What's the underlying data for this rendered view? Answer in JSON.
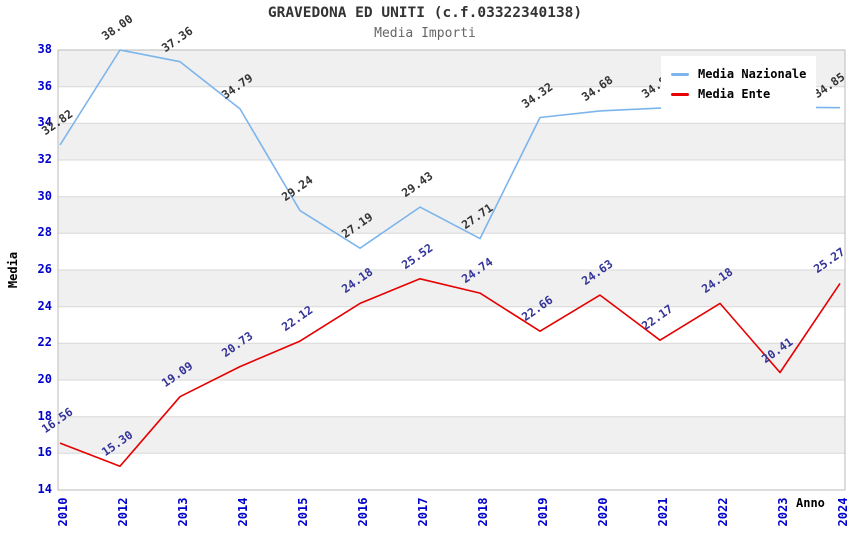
{
  "chart_data": {
    "type": "line",
    "title": "GRAVEDONA ED UNITI (c.f.03322340138)",
    "subtitle": "Media Importi",
    "xlabel": "Anno",
    "ylabel": "Media",
    "categories": [
      "2010",
      "2012",
      "2013",
      "2014",
      "2015",
      "2016",
      "2017",
      "2018",
      "2019",
      "2020",
      "2021",
      "2022",
      "2023",
      "2024"
    ],
    "ylim": [
      14,
      38
    ],
    "ytick_step": 2,
    "grid": "horizontal-bands",
    "legend_position": "top-right",
    "series": [
      {
        "name": "Media Nazionale",
        "color": "#7cb5ec",
        "label_color": "#333333",
        "values": [
          32.82,
          38.0,
          37.36,
          34.79,
          29.24,
          27.19,
          29.43,
          27.71,
          34.32,
          34.68,
          34.83,
          34.97,
          34.88,
          34.85
        ],
        "point_labels": [
          "32.82",
          "38.00",
          "37.36",
          "34.79",
          "29.24",
          "27.19",
          "29.43",
          "27.71",
          "34.32",
          "34.68",
          "34.83",
          "",
          "",
          "34.85"
        ]
      },
      {
        "name": "Media Ente",
        "color": "#e60000",
        "label_color": "#333399",
        "values": [
          16.56,
          15.3,
          19.09,
          20.73,
          22.12,
          24.18,
          25.52,
          24.74,
          22.66,
          24.63,
          22.17,
          24.18,
          20.41,
          25.27
        ],
        "point_labels": [
          "16.56",
          "15.30",
          "19.09",
          "20.73",
          "22.12",
          "24.18",
          "25.52",
          "24.74",
          "22.66",
          "24.63",
          "22.17",
          "24.18",
          "20.41",
          "25.27"
        ]
      }
    ],
    "colors": {
      "tick_label": "#0000cc",
      "band_fill": "#f0f0f0",
      "grid_line": "#d8d8d8",
      "plot_border": "#bbbbbb",
      "title": "#333333",
      "subtitle": "#666666"
    }
  }
}
